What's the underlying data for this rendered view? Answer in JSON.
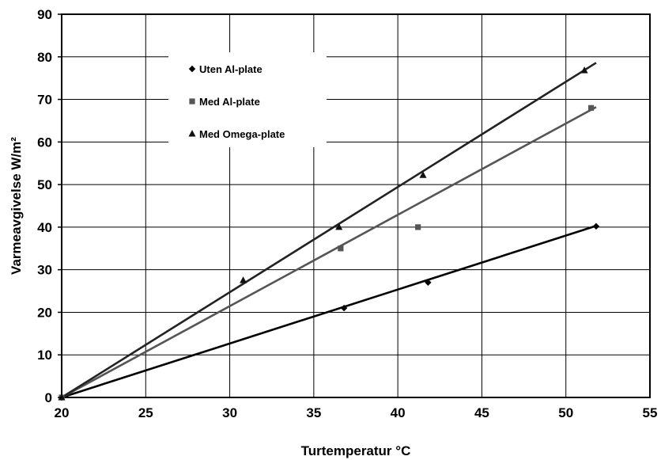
{
  "chart_data": {
    "type": "scatter",
    "title": "",
    "xlabel": "Turtemperatur °C",
    "ylabel": "Varmeavgivelse W/m²",
    "xlim": [
      20,
      55
    ],
    "ylim": [
      0,
      90
    ],
    "xticks": [
      20,
      25,
      30,
      35,
      40,
      45,
      50,
      55
    ],
    "yticks": [
      0,
      10,
      20,
      30,
      40,
      50,
      60,
      70,
      80,
      90
    ],
    "grid": true,
    "legend_position": "upper-left inside plot",
    "series": [
      {
        "name": "Uten Al-plate",
        "marker": "diamond",
        "color": "#000000",
        "line_color": "#000000",
        "points": [
          [
            20,
            0
          ],
          [
            36.8,
            21
          ],
          [
            41.8,
            27
          ],
          [
            51.8,
            40.2
          ]
        ],
        "trendline": [
          [
            20,
            0
          ],
          [
            51.8,
            40.3
          ]
        ]
      },
      {
        "name": "Med Al-plate",
        "marker": "square",
        "color": "#555555",
        "line_color": "#555555",
        "points": [
          [
            20,
            0
          ],
          [
            36.6,
            35
          ],
          [
            41.2,
            40
          ],
          [
            51.5,
            68
          ]
        ],
        "trendline": [
          [
            20,
            0
          ],
          [
            51.8,
            68.2
          ]
        ]
      },
      {
        "name": "Med Omega-plate",
        "marker": "triangle",
        "color": "#111111",
        "line_color": "#222222",
        "points": [
          [
            20,
            0
          ],
          [
            30.8,
            27.5
          ],
          [
            36.5,
            40
          ],
          [
            41.5,
            52.2
          ],
          [
            51.1,
            76.8
          ]
        ],
        "trendline": [
          [
            20,
            0
          ],
          [
            51.8,
            78.6
          ]
        ]
      }
    ]
  }
}
